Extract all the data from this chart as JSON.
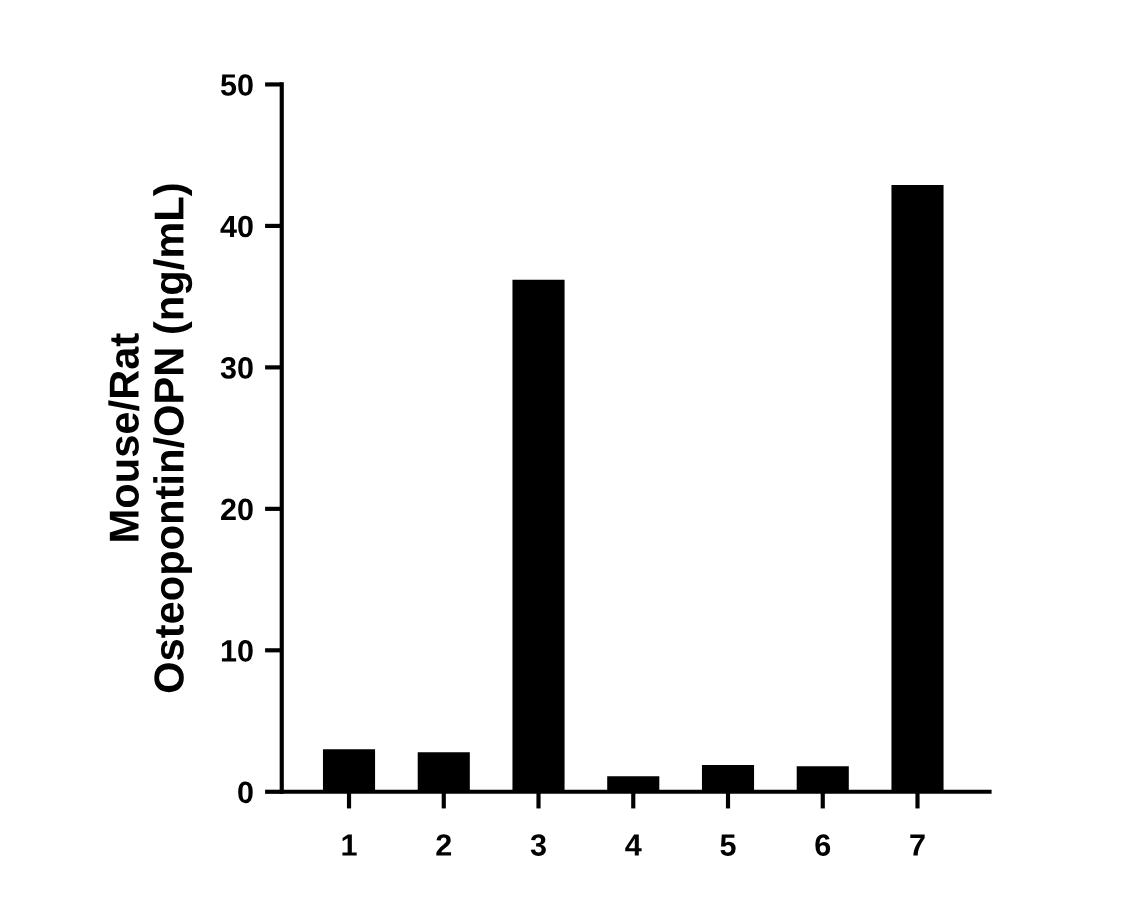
{
  "chart_data": {
    "type": "bar",
    "ylabel": "Mouse/Rat\nOsteopontin/OPN (ng/mL)",
    "categories": [
      "1",
      "2",
      "3",
      "4",
      "5",
      "6",
      "7"
    ],
    "values": [
      3.0,
      2.8,
      36.2,
      1.1,
      1.9,
      1.8,
      42.9
    ],
    "color": "#000000",
    "ylim": [
      0,
      50
    ],
    "yticks": [
      0,
      10,
      20,
      30,
      40,
      50
    ],
    "grid": false,
    "legend": false
  }
}
